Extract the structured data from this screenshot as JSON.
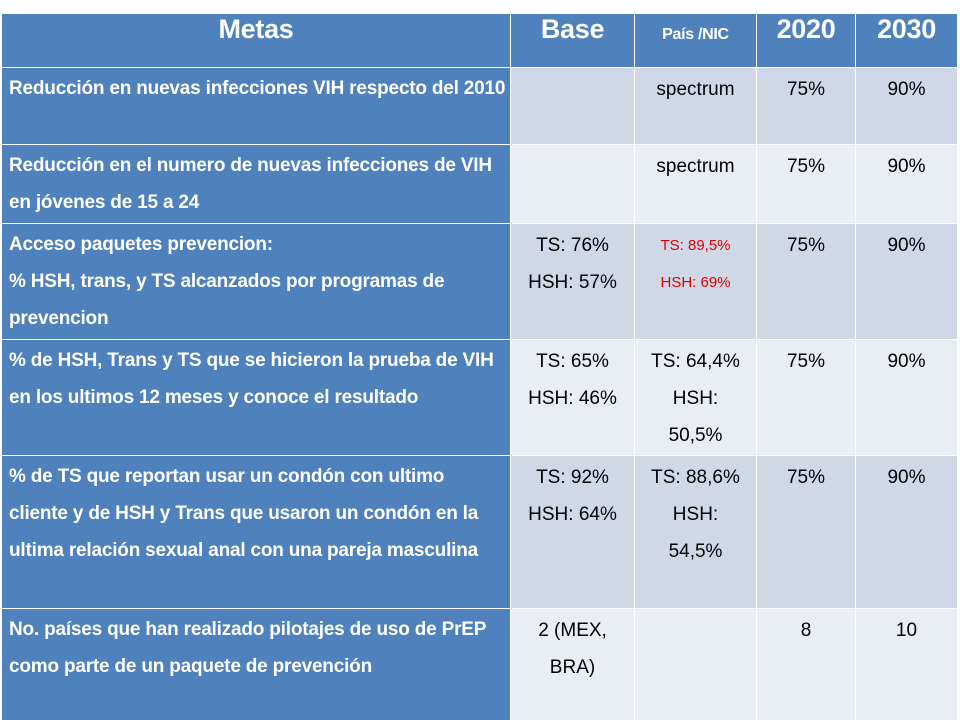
{
  "table": {
    "headers": {
      "metas": "Metas",
      "base": "Base",
      "pais": "País /NIC",
      "y2020": "2020",
      "y2030": "2030"
    },
    "rows": [
      {
        "goal": "Reducción en nuevas infecciones VIH respecto del 2010",
        "base": [],
        "pais": [
          "spectrum"
        ],
        "y2020": "75%",
        "y2030": "90%"
      },
      {
        "goal": "Reducción en el numero de nuevas infecciones de VIH en jóvenes de 15 a 24",
        "base": [],
        "pais": [
          "spectrum"
        ],
        "y2020": "75%",
        "y2030": "90%"
      },
      {
        "goal_lines": [
          "Acceso paquetes prevencion:",
          "% HSH, trans, y TS alcanzados por programas de prevencion"
        ],
        "base": [
          "TS: 76%",
          "HSH: 57%"
        ],
        "pais": [
          "TS: 89,5%",
          "HSH: 69%"
        ],
        "y2020": "75%",
        "y2030": "90%"
      },
      {
        "goal": "% de HSH, Trans y TS que  se hicieron la prueba de VIH en los ultimos 12 meses y conoce el resultado",
        "base": [
          "TS: 65%",
          "HSH: 46%"
        ],
        "pais": [
          "TS: 64,4%",
          "HSH:",
          "50,5%"
        ],
        "y2020": "75%",
        "y2030": "90%"
      },
      {
        "goal": "% de TS que reportan  usar un condón con ultimo cliente y  de HSH y Trans que usaron un condón en la ultima relación sexual anal con una pareja masculina",
        "base": [
          "TS: 92%",
          "HSH: 64%"
        ],
        "pais": [
          "TS: 88,6%",
          "HSH:",
          "54,5%"
        ],
        "y2020": "75%",
        "y2030": "90%"
      },
      {
        "goal": "No. países que han realizado pilotajes de uso de PrEP como parte de un paquete de prevención",
        "base": [
          "2 (MEX,",
          "BRA)"
        ],
        "pais": [],
        "y2020": "8",
        "y2030": "10"
      }
    ]
  },
  "colors": {
    "header_blue": "#4f81bd",
    "row_light_a": "#d0d8e8",
    "row_light_b": "#e9edf4",
    "accent_red": "#e00000"
  }
}
